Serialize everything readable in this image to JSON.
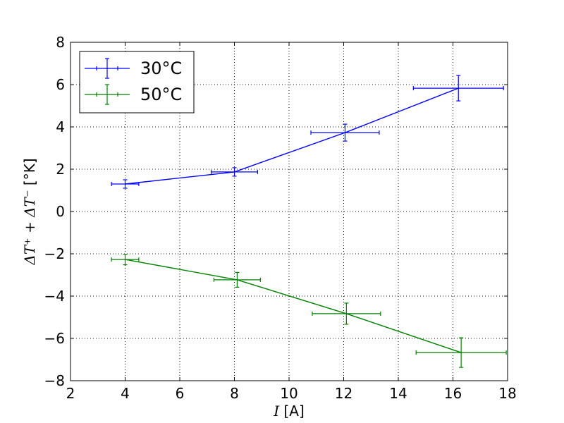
{
  "chart_data": {
    "type": "line",
    "xlabel": {
      "symbol": "I",
      "unit": " [A]"
    },
    "ylabel": {
      "expression": "ΔT⁺ + ΔT⁻",
      "unit": "[°K]"
    },
    "xlim": [
      2,
      18
    ],
    "ylim": [
      -8,
      8
    ],
    "xticks": [
      2,
      4,
      6,
      8,
      10,
      12,
      14,
      16,
      18
    ],
    "yticks": [
      -8,
      -6,
      -4,
      -2,
      0,
      2,
      4,
      6,
      8
    ],
    "xtick_labels": [
      "2",
      "4",
      "6",
      "8",
      "10",
      "12",
      "14",
      "16",
      "18"
    ],
    "ytick_labels": [
      "−8",
      "−6",
      "−4",
      "−2",
      "0",
      "2",
      "4",
      "6",
      "8"
    ],
    "grid": true,
    "legend_position": "top-left",
    "series": [
      {
        "name": "30°C",
        "color": "#0000ff",
        "points": [
          {
            "x": 4.0,
            "y": 1.3,
            "xerr": 0.5,
            "yerr": 0.2
          },
          {
            "x": 8.0,
            "y": 1.87,
            "xerr": 0.85,
            "yerr": 0.2
          },
          {
            "x": 12.05,
            "y": 3.73,
            "xerr": 1.25,
            "yerr": 0.4
          },
          {
            "x": 16.2,
            "y": 5.83,
            "xerr": 1.65,
            "yerr": 0.6
          }
        ]
      },
      {
        "name": "50°C",
        "color": "#008000",
        "points": [
          {
            "x": 4.0,
            "y": -2.27,
            "xerr": 0.5,
            "yerr": 0.25
          },
          {
            "x": 8.1,
            "y": -3.23,
            "xerr": 0.85,
            "yerr": 0.35
          },
          {
            "x": 12.1,
            "y": -4.83,
            "xerr": 1.25,
            "yerr": 0.5
          },
          {
            "x": 16.3,
            "y": -6.67,
            "xerr": 1.65,
            "yerr": 0.7
          }
        ]
      }
    ]
  }
}
